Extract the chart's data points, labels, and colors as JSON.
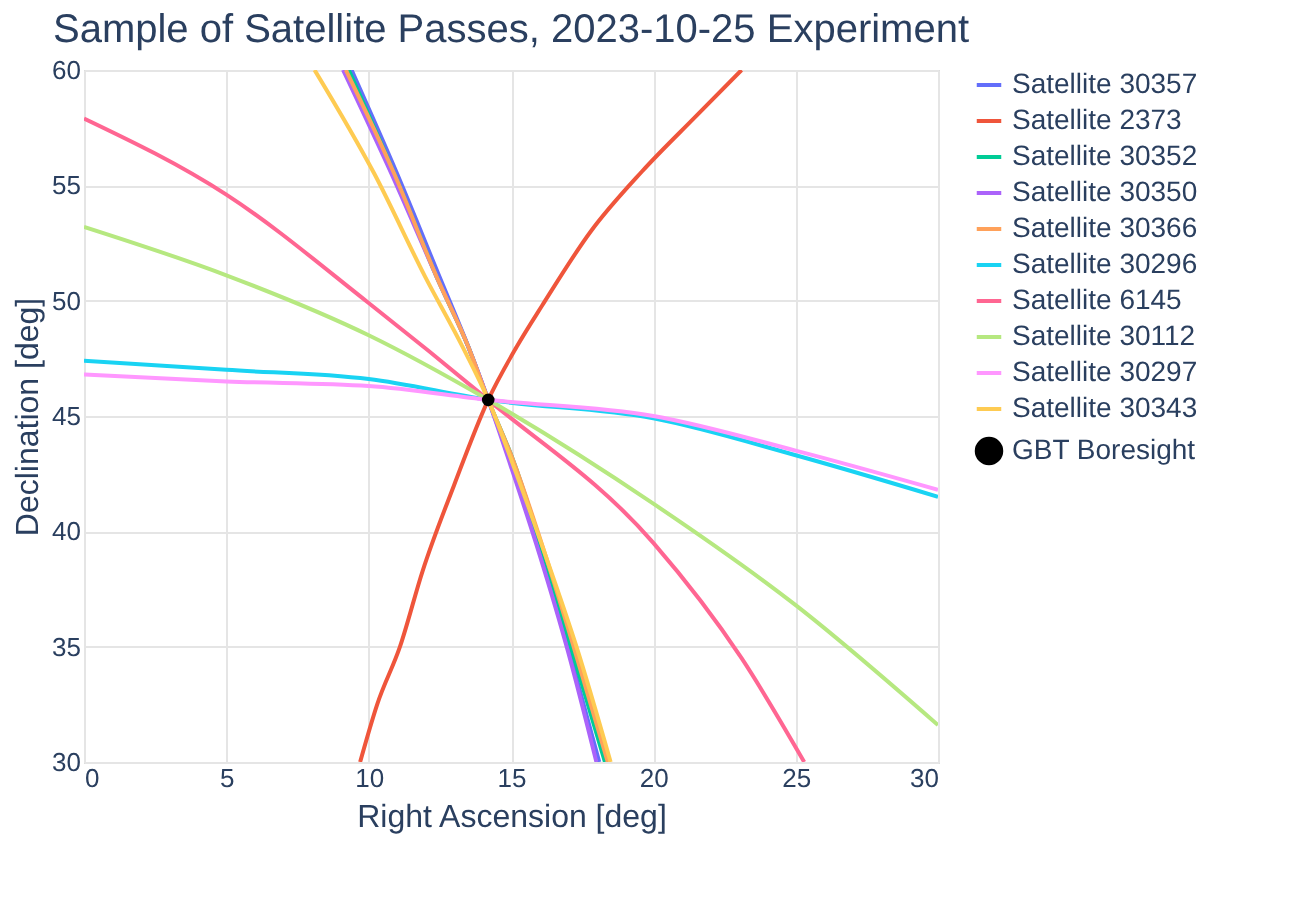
{
  "chart_data": {
    "type": "line",
    "title": "Sample of Satellite Passes, 2023-10-25 Experiment",
    "xlabel": "Right Ascension [deg]",
    "ylabel": "Declination [deg]",
    "xlim": [
      0,
      30
    ],
    "ylim": [
      30,
      60
    ],
    "xticks": [
      0,
      5,
      10,
      15,
      20,
      25,
      30
    ],
    "yticks": [
      30,
      35,
      40,
      45,
      50,
      55,
      60
    ],
    "grid": true,
    "legend": "top right",
    "line_style": "solid",
    "series": [
      {
        "name": "Satellite 30357",
        "color": "#636efa",
        "x": [
          9.4,
          11,
          12.5,
          13.5,
          14.2,
          15,
          16,
          17,
          18.1
        ],
        "values": [
          60,
          55.5,
          51,
          48,
          45.7,
          43,
          39.5,
          35,
          30
        ]
      },
      {
        "name": "Satellite 2373",
        "color": "#ef553b",
        "x": [
          9.7,
          10.3,
          11.1,
          11.9,
          13.0,
          14.2,
          15.2,
          16.1,
          17.8,
          19.6,
          21.5,
          23.1
        ],
        "values": [
          30,
          32.5,
          35,
          38.3,
          42,
          45.7,
          48,
          49.8,
          53,
          55.6,
          58,
          60
        ]
      },
      {
        "name": "Satellite 30352",
        "color": "#00cc96",
        "x": [
          9.3,
          10.9,
          12.4,
          13.5,
          14.2,
          15.1,
          16.1,
          17.1,
          18.3
        ],
        "values": [
          60,
          55.5,
          51,
          48,
          45.7,
          43,
          39.2,
          35,
          30
        ]
      },
      {
        "name": "Satellite 30350",
        "color": "#ab63fa",
        "x": [
          9.1,
          10.8,
          12.4,
          13.5,
          14.2,
          15,
          16,
          17,
          18.0
        ],
        "values": [
          60,
          55.5,
          51,
          48,
          45.7,
          42.8,
          39,
          34.8,
          30
        ]
      },
      {
        "name": "Satellite 30366",
        "color": "#ffa15a",
        "x": [
          9.2,
          10.9,
          12.4,
          13.5,
          14.2,
          15.1,
          16.2,
          17.2,
          18.4
        ],
        "values": [
          60,
          55.5,
          51,
          48,
          45.7,
          43,
          39,
          35,
          30
        ]
      },
      {
        "name": "Satellite 30296",
        "color": "#19d3f3",
        "x": [
          0,
          5,
          10,
          14.2,
          20,
          25,
          30
        ],
        "values": [
          47.4,
          47.0,
          46.6,
          45.7,
          44.9,
          43.3,
          41.5
        ]
      },
      {
        "name": "Satellite 6145",
        "color": "#ff6692",
        "x": [
          0,
          5,
          10,
          14.2,
          20,
          23.1,
          25.3
        ],
        "values": [
          57.9,
          54.6,
          49.9,
          45.7,
          39.5,
          34.5,
          30
        ]
      },
      {
        "name": "Satellite 30112",
        "color": "#b6e880",
        "x": [
          0,
          5,
          10,
          14.2,
          20,
          25,
          30
        ],
        "values": [
          53.2,
          51.1,
          48.5,
          45.7,
          41.2,
          36.8,
          31.6
        ]
      },
      {
        "name": "Satellite 30297",
        "color": "#ff97ff",
        "x": [
          0,
          5,
          10,
          14.2,
          20,
          25,
          30
        ],
        "values": [
          46.8,
          46.5,
          46.3,
          45.7,
          45.0,
          43.5,
          41.8
        ]
      },
      {
        "name": "Satellite 30343",
        "color": "#fecb52",
        "x": [
          8.1,
          10.2,
          12,
          13.3,
          14.2,
          15.1,
          16.2,
          17.3,
          18.5
        ],
        "values": [
          60,
          55.5,
          51,
          48,
          45.7,
          42.8,
          39,
          35,
          30
        ]
      },
      {
        "name": "GBT Boresight",
        "color": "#000000",
        "type": "scatter",
        "marker": "circle",
        "x": [
          14.2
        ],
        "values": [
          45.7
        ]
      }
    ]
  }
}
